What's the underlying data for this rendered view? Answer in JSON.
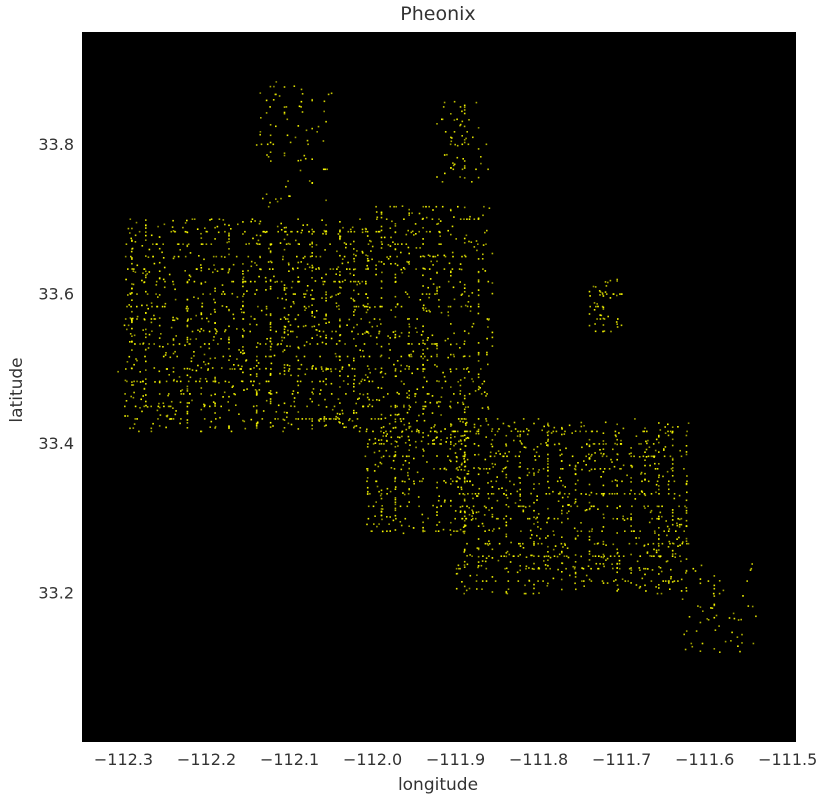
{
  "chart_data": {
    "type": "scatter",
    "title": "Pheonix",
    "xlabel": "longitude",
    "ylabel": "latitude",
    "xlim": [
      -112.35,
      -111.49
    ],
    "ylim": [
      33.0,
      33.95
    ],
    "x_ticks": [
      -112.3,
      -112.2,
      -112.1,
      -112.0,
      -111.9,
      -111.8,
      -111.7,
      -111.6,
      -111.5
    ],
    "x_tick_labels": [
      "−112.3",
      "−112.2",
      "−112.1",
      "−112.0",
      "−111.9",
      "−111.8",
      "−111.7",
      "−111.6",
      "−111.5"
    ],
    "y_ticks": [
      33.2,
      33.4,
      33.6,
      33.8
    ],
    "y_tick_labels": [
      "33.2",
      "33.4",
      "33.6",
      "33.8"
    ],
    "grid": false,
    "legend": "none",
    "background_color": "#000000",
    "point_color": "#ffff00",
    "series": [
      {
        "points_description_free": true,
        "clusters": [
          {
            "lon": [
              -112.3,
              -112.0
            ],
            "lat": [
              33.42,
              33.7
            ],
            "density": 1.0
          },
          {
            "lon": [
              -112.0,
              -111.86
            ],
            "lat": [
              33.4,
              33.72
            ],
            "density": 0.8
          },
          {
            "lon": [
              -111.9,
              -111.62
            ],
            "lat": [
              33.2,
              33.43
            ],
            "density": 1.0
          },
          {
            "lon": [
              -112.01,
              -111.88
            ],
            "lat": [
              33.28,
              33.43
            ],
            "density": 0.8
          },
          {
            "lon": [
              -111.92,
              -111.86
            ],
            "lat": [
              33.75,
              33.86
            ],
            "density": 0.25
          },
          {
            "lon": [
              -112.14,
              -112.05
            ],
            "lat": [
              33.72,
              33.88
            ],
            "density": 0.2
          },
          {
            "lon": [
              -111.63,
              -111.54
            ],
            "lat": [
              33.12,
              33.24
            ],
            "density": 0.15
          },
          {
            "lon": [
              -111.74,
              -111.7
            ],
            "lat": [
              33.55,
              33.62
            ],
            "density": 0.3
          }
        ]
      }
    ]
  }
}
